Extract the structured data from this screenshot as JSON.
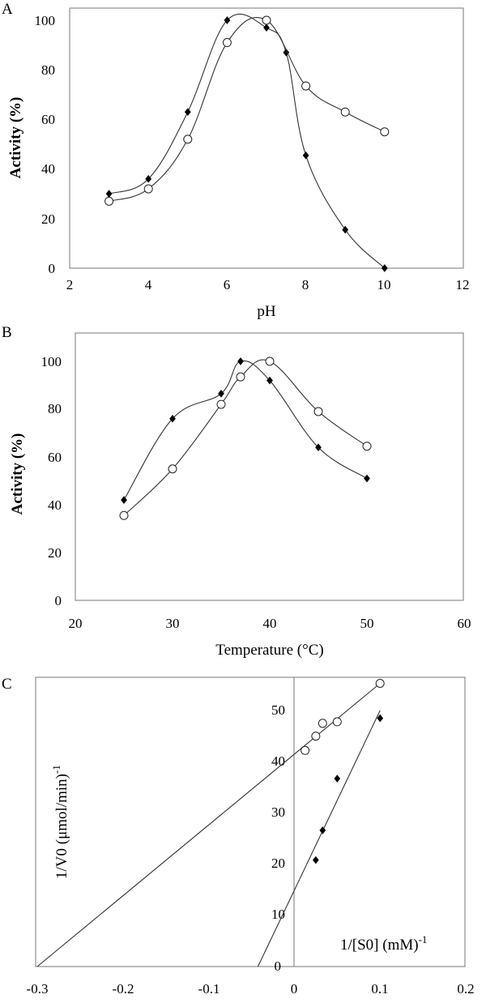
{
  "chart_data": [
    {
      "panel_label": "A",
      "type": "line",
      "xlabel": "pH",
      "ylabel": "Activity  (%)",
      "xlim": [
        2,
        12
      ],
      "ylim": [
        0,
        100
      ],
      "xticks": [
        2,
        4,
        6,
        8,
        10,
        12
      ],
      "yticks": [
        0,
        20,
        40,
        60,
        80,
        100
      ],
      "grid": false,
      "series": [
        {
          "marker": "filled-diamond",
          "x": [
            3,
            4,
            5,
            6,
            7,
            7.5,
            8,
            9,
            10
          ],
          "y": [
            30,
            36,
            63,
            100,
            97,
            87,
            45.5,
            15.5,
            0
          ]
        },
        {
          "marker": "open-circle",
          "x": [
            3,
            4,
            5,
            6,
            7,
            8,
            9,
            10
          ],
          "y": [
            27,
            32,
            52,
            91,
            100,
            73.5,
            63,
            55
          ]
        }
      ]
    },
    {
      "panel_label": "B",
      "type": "line",
      "xlabel": "Temperature (°C)",
      "ylabel": "Activity  (%)",
      "xlim": [
        20,
        60
      ],
      "ylim": [
        0,
        100
      ],
      "xticks": [
        20,
        30,
        40,
        50,
        60
      ],
      "yticks": [
        0,
        20,
        40,
        60,
        80,
        100
      ],
      "grid": false,
      "series": [
        {
          "marker": "filled-diamond",
          "x": [
            25,
            30,
            35,
            37,
            40,
            45,
            50
          ],
          "y": [
            42,
            76,
            86.5,
            100,
            92,
            64,
            51
          ]
        },
        {
          "marker": "open-circle",
          "x": [
            25,
            30,
            35,
            37,
            40,
            45,
            50
          ],
          "y": [
            35.5,
            55,
            82,
            93.5,
            100,
            79,
            64.5
          ]
        }
      ]
    },
    {
      "panel_label": "C",
      "type": "scatter",
      "xlabel": "1/[S0] (mM)",
      "xlabel_sup": "-1",
      "ylabel": "1/V0 (μmol/min)",
      "ylabel_sup": "-1",
      "xlim": [
        -0.3,
        0.2
      ],
      "ylim": [
        0,
        57
      ],
      "xticks": [
        "-0.3",
        "-0.2",
        "-0.1",
        "0",
        "0.1",
        "0.2"
      ],
      "yticks": [
        0,
        10,
        20,
        30,
        40,
        50
      ],
      "grid": false,
      "series": [
        {
          "marker": "open-circle",
          "x": [
            0.0125,
            0.025,
            0.033,
            0.05,
            0.1
          ],
          "y": [
            42.2,
            45,
            47.5,
            47.8,
            55.3
          ],
          "fit": {
            "x0": -0.3,
            "y0": 0,
            "x1": 0.1,
            "y1": 55.3
          }
        },
        {
          "marker": "filled-diamond",
          "x": [
            0.025,
            0.033,
            0.05,
            0.1
          ],
          "y": [
            20.8,
            26.6,
            36.7,
            48.5
          ],
          "fit": {
            "x0": -0.0425,
            "y0": 0,
            "x1": 0.1,
            "y1": 50
          }
        }
      ]
    }
  ]
}
